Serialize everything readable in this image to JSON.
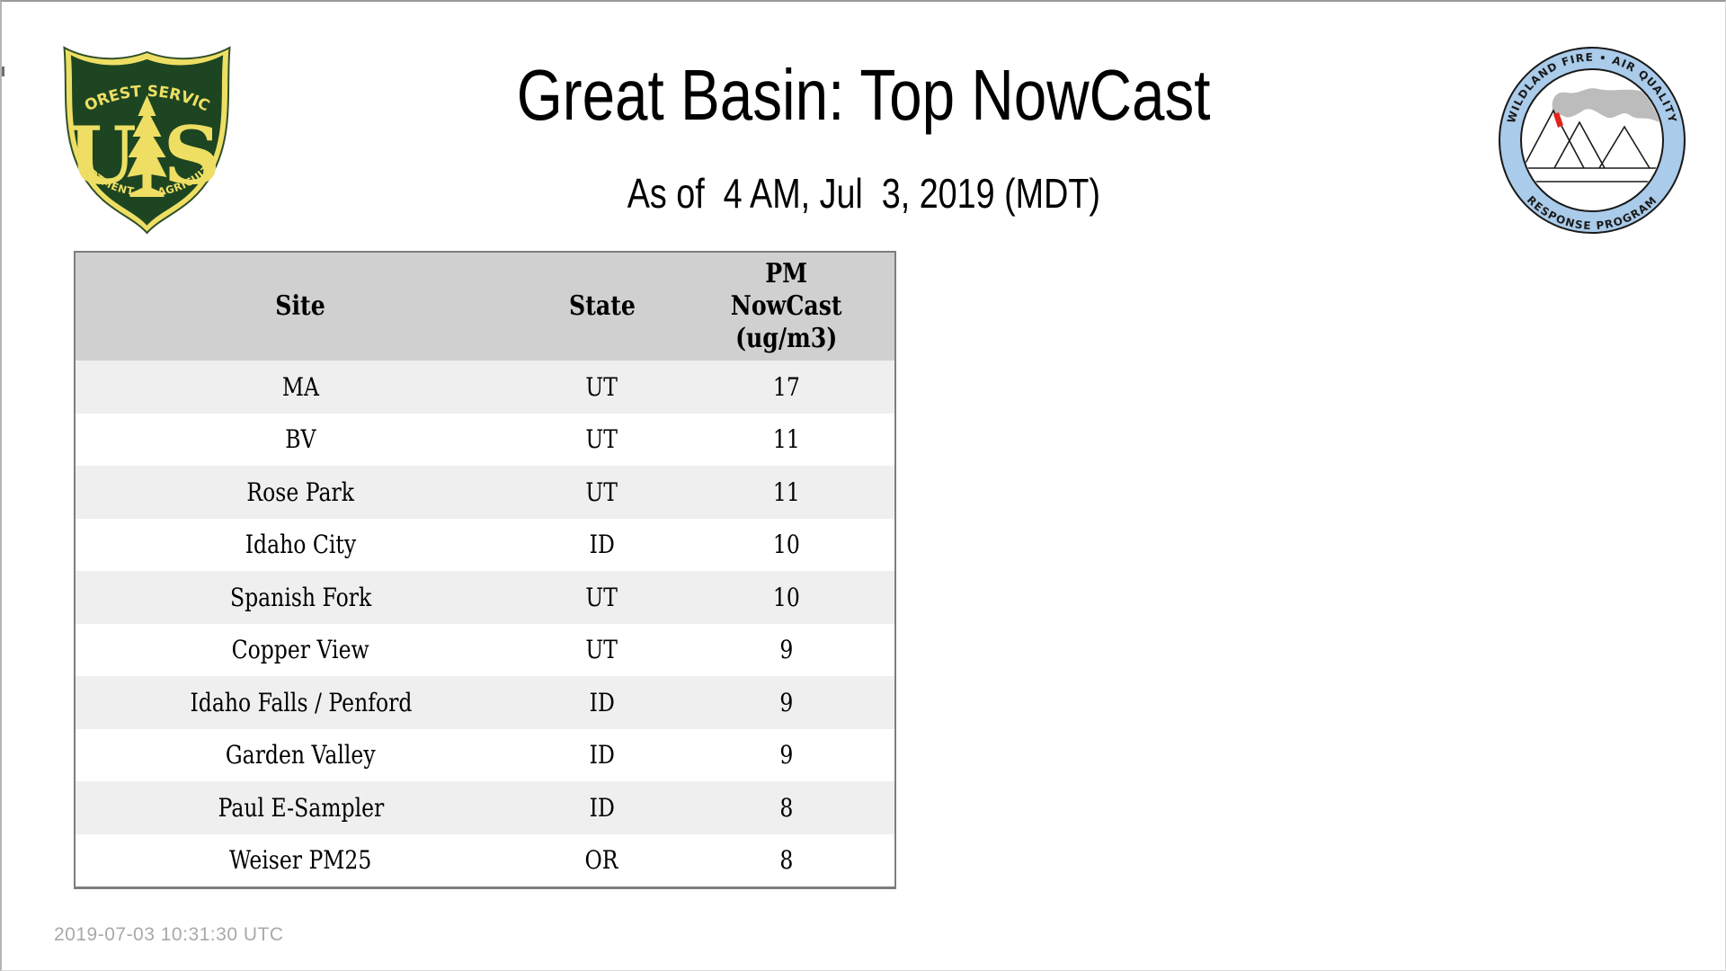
{
  "page": {
    "title": "Great Basin: Top NowCast",
    "subtitle": "As of  4 AM, Jul  3, 2019 (MDT)",
    "timestamp": "2019-07-03 10:31:30 UTC"
  },
  "logos": {
    "forest_service": {
      "name": "US Forest Service shield",
      "arc_top": "FOREST SERVICE",
      "letter_left": "U",
      "letter_right": "S",
      "arc_bottom": "DEPARTMENT OF AGRICULTURE",
      "colors": {
        "green": "#1d4521",
        "gold": "#eedf64",
        "outline": "#2f4f2a"
      }
    },
    "air_quality": {
      "name": "Wildland Fire Air Quality Response Program badge",
      "arc_top": "WILDLAND FIRE • AIR QUALITY",
      "arc_bottom": "RESPONSE PROGRAM",
      "colors": {
        "ring": "#aacbe9",
        "smoke": "#bcbcbc",
        "flame": "#e3241b",
        "outline": "#1a1a1a"
      }
    }
  },
  "table": {
    "col_headers": {
      "site": "Site",
      "state": "State",
      "pm": "PM\nNowCast\n(ug/m3)"
    },
    "rows": [
      {
        "site": "MA",
        "state": "UT",
        "pm": "17"
      },
      {
        "site": "BV",
        "state": "UT",
        "pm": "11"
      },
      {
        "site": "Rose Park",
        "state": "UT",
        "pm": "11"
      },
      {
        "site": "Idaho City",
        "state": "ID",
        "pm": "10"
      },
      {
        "site": "Spanish Fork",
        "state": "UT",
        "pm": "10"
      },
      {
        "site": "Copper View",
        "state": "UT",
        "pm": "9"
      },
      {
        "site": "Idaho Falls / Penford",
        "state": "ID",
        "pm": "9"
      },
      {
        "site": "Garden Valley",
        "state": "ID",
        "pm": "9"
      },
      {
        "site": "Paul E-Sampler",
        "state": "ID",
        "pm": "8"
      },
      {
        "site": "Weiser PM25",
        "state": "OR",
        "pm": "8"
      }
    ],
    "colors": {
      "header_bg": "#d0d0d0",
      "alt_row_bg": "#efefef",
      "border": "#7e7e7e"
    }
  },
  "chart_data": {
    "type": "table",
    "title": "Great Basin: Top NowCast",
    "subtitle": "As of 4 AM, Jul 3, 2019 (MDT)",
    "columns": [
      "Site",
      "State",
      "PM NowCast (ug/m3)"
    ],
    "rows": [
      [
        "MA",
        "UT",
        17
      ],
      [
        "BV",
        "UT",
        11
      ],
      [
        "Rose Park",
        "UT",
        11
      ],
      [
        "Idaho City",
        "ID",
        10
      ],
      [
        "Spanish Fork",
        "UT",
        10
      ],
      [
        "Copper View",
        "UT",
        9
      ],
      [
        "Idaho Falls / Penford",
        "ID",
        9
      ],
      [
        "Garden Valley",
        "ID",
        9
      ],
      [
        "Paul E-Sampler",
        "ID",
        8
      ],
      [
        "Weiser PM25",
        "OR",
        8
      ]
    ]
  }
}
